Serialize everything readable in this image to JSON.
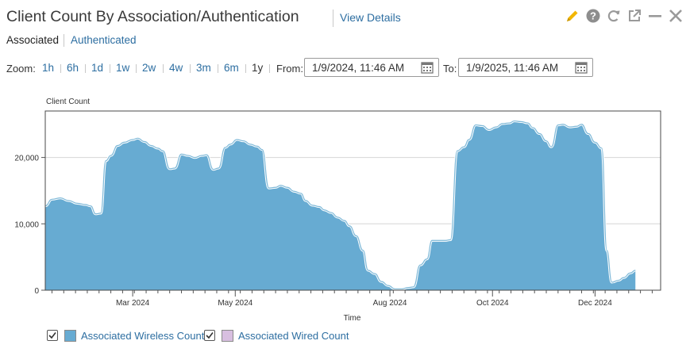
{
  "header": {
    "title": "Client Count By Association/Authentication",
    "view_details": "View Details",
    "icons": [
      "pencil-icon",
      "help-icon",
      "refresh-icon",
      "popout-icon",
      "minimize-icon",
      "close-icon"
    ]
  },
  "tabs": {
    "active": "Associated",
    "inactive": "Authenticated"
  },
  "zoom": {
    "label": "Zoom:",
    "options": [
      "1h",
      "6h",
      "1d",
      "1w",
      "2w",
      "4w",
      "3m",
      "6m",
      "1y"
    ],
    "from_label": "From:",
    "from_value": "1/9/2024, 11:46 AM",
    "to_label": "To:",
    "to_value": "1/9/2025, 11:46 AM"
  },
  "colors": {
    "wireless_fill": "#67abd2",
    "wireless_line": "#c5e2f0",
    "wired_fill": "#d8bfe0",
    "link": "#2d6ea1",
    "icon_pencil": "#f2b600",
    "icon_gray": "#999999"
  },
  "chart_data": {
    "type": "area",
    "ylabel": "Client Count",
    "xlabel": "Time",
    "ylim": [
      0,
      27000
    ],
    "yticks": [
      {
        "value": 0,
        "label": "0"
      },
      {
        "value": 10000,
        "label": "10,000"
      },
      {
        "value": 20000,
        "label": "20,000"
      }
    ],
    "xlim": [
      "2024-01-09",
      "2025-01-09"
    ],
    "xticks": [
      {
        "date": "2024-03-01",
        "label": "Mar 2024"
      },
      {
        "date": "2024-05-01",
        "label": "May 2024"
      },
      {
        "date": "2024-08-01",
        "label": "Aug 2024"
      },
      {
        "date": "2024-10-01",
        "label": "Oct 2024"
      },
      {
        "date": "2024-12-01",
        "label": "Dec 2024"
      }
    ],
    "grid": "horizontal",
    "series": [
      {
        "name": "Associated Wireless Count",
        "points": [
          [
            "2024-01-09",
            12700
          ],
          [
            "2024-01-13",
            13700
          ],
          [
            "2024-01-18",
            13900
          ],
          [
            "2024-01-23",
            13500
          ],
          [
            "2024-01-28",
            13100
          ],
          [
            "2024-02-02",
            12900
          ],
          [
            "2024-02-05",
            12700
          ],
          [
            "2024-02-08",
            11500
          ],
          [
            "2024-02-11",
            11600
          ],
          [
            "2024-02-14",
            19500
          ],
          [
            "2024-02-17",
            20300
          ],
          [
            "2024-02-21",
            21800
          ],
          [
            "2024-02-25",
            22300
          ],
          [
            "2024-03-01",
            22700
          ],
          [
            "2024-03-04",
            22900
          ],
          [
            "2024-03-08",
            22400
          ],
          [
            "2024-03-12",
            21800
          ],
          [
            "2024-03-16",
            21400
          ],
          [
            "2024-03-19",
            21000
          ],
          [
            "2024-03-23",
            18300
          ],
          [
            "2024-03-26",
            18400
          ],
          [
            "2024-03-30",
            20500
          ],
          [
            "2024-04-03",
            20300
          ],
          [
            "2024-04-07",
            20000
          ],
          [
            "2024-04-11",
            20300
          ],
          [
            "2024-04-14",
            20400
          ],
          [
            "2024-04-18",
            18200
          ],
          [
            "2024-04-21",
            18400
          ],
          [
            "2024-04-25",
            21500
          ],
          [
            "2024-04-28",
            22000
          ],
          [
            "2024-05-02",
            22700
          ],
          [
            "2024-05-06",
            22500
          ],
          [
            "2024-05-10",
            22000
          ],
          [
            "2024-05-14",
            21700
          ],
          [
            "2024-05-17",
            21200
          ],
          [
            "2024-05-21",
            15400
          ],
          [
            "2024-05-25",
            15500
          ],
          [
            "2024-05-28",
            15800
          ],
          [
            "2024-06-01",
            15500
          ],
          [
            "2024-06-05",
            14900
          ],
          [
            "2024-06-09",
            14600
          ],
          [
            "2024-06-12",
            13500
          ],
          [
            "2024-06-16",
            12800
          ],
          [
            "2024-06-20",
            12600
          ],
          [
            "2024-06-23",
            12100
          ],
          [
            "2024-06-27",
            11700
          ],
          [
            "2024-07-01",
            11000
          ],
          [
            "2024-07-05",
            10500
          ],
          [
            "2024-07-08",
            9700
          ],
          [
            "2024-07-12",
            8200
          ],
          [
            "2024-07-16",
            6000
          ],
          [
            "2024-07-19",
            3000
          ],
          [
            "2024-07-23",
            2500
          ],
          [
            "2024-07-27",
            1300
          ],
          [
            "2024-07-31",
            700
          ],
          [
            "2024-08-04",
            200
          ],
          [
            "2024-08-08",
            200
          ],
          [
            "2024-08-12",
            400
          ],
          [
            "2024-08-15",
            500
          ],
          [
            "2024-08-19",
            3800
          ],
          [
            "2024-08-23",
            4700
          ],
          [
            "2024-08-26",
            7500
          ],
          [
            "2024-08-30",
            7500
          ],
          [
            "2024-09-03",
            7500
          ],
          [
            "2024-09-06",
            7600
          ],
          [
            "2024-09-10",
            21000
          ],
          [
            "2024-09-14",
            21600
          ],
          [
            "2024-09-17",
            22700
          ],
          [
            "2024-09-21",
            24900
          ],
          [
            "2024-09-25",
            24800
          ],
          [
            "2024-09-29",
            24200
          ],
          [
            "2024-10-03",
            24600
          ],
          [
            "2024-10-07",
            25100
          ],
          [
            "2024-10-11",
            25200
          ],
          [
            "2024-10-14",
            25500
          ],
          [
            "2024-10-18",
            25400
          ],
          [
            "2024-10-22",
            25200
          ],
          [
            "2024-10-25",
            24500
          ],
          [
            "2024-10-29",
            23600
          ],
          [
            "2024-11-02",
            22500
          ],
          [
            "2024-11-05",
            21600
          ],
          [
            "2024-11-09",
            24900
          ],
          [
            "2024-11-12",
            25000
          ],
          [
            "2024-11-16",
            24600
          ],
          [
            "2024-11-20",
            24700
          ],
          [
            "2024-11-23",
            25000
          ],
          [
            "2024-11-27",
            23600
          ],
          [
            "2024-12-01",
            22300
          ],
          [
            "2024-12-05",
            21400
          ],
          [
            "2024-12-08",
            6000
          ],
          [
            "2024-12-11",
            1200
          ],
          [
            "2024-12-15",
            1500
          ],
          [
            "2024-12-18",
            1900
          ],
          [
            "2024-12-22",
            2600
          ],
          [
            "2024-12-25",
            3000
          ]
        ]
      },
      {
        "name": "Associated Wired Count",
        "points": []
      }
    ],
    "legend_position": "bottom-left"
  }
}
